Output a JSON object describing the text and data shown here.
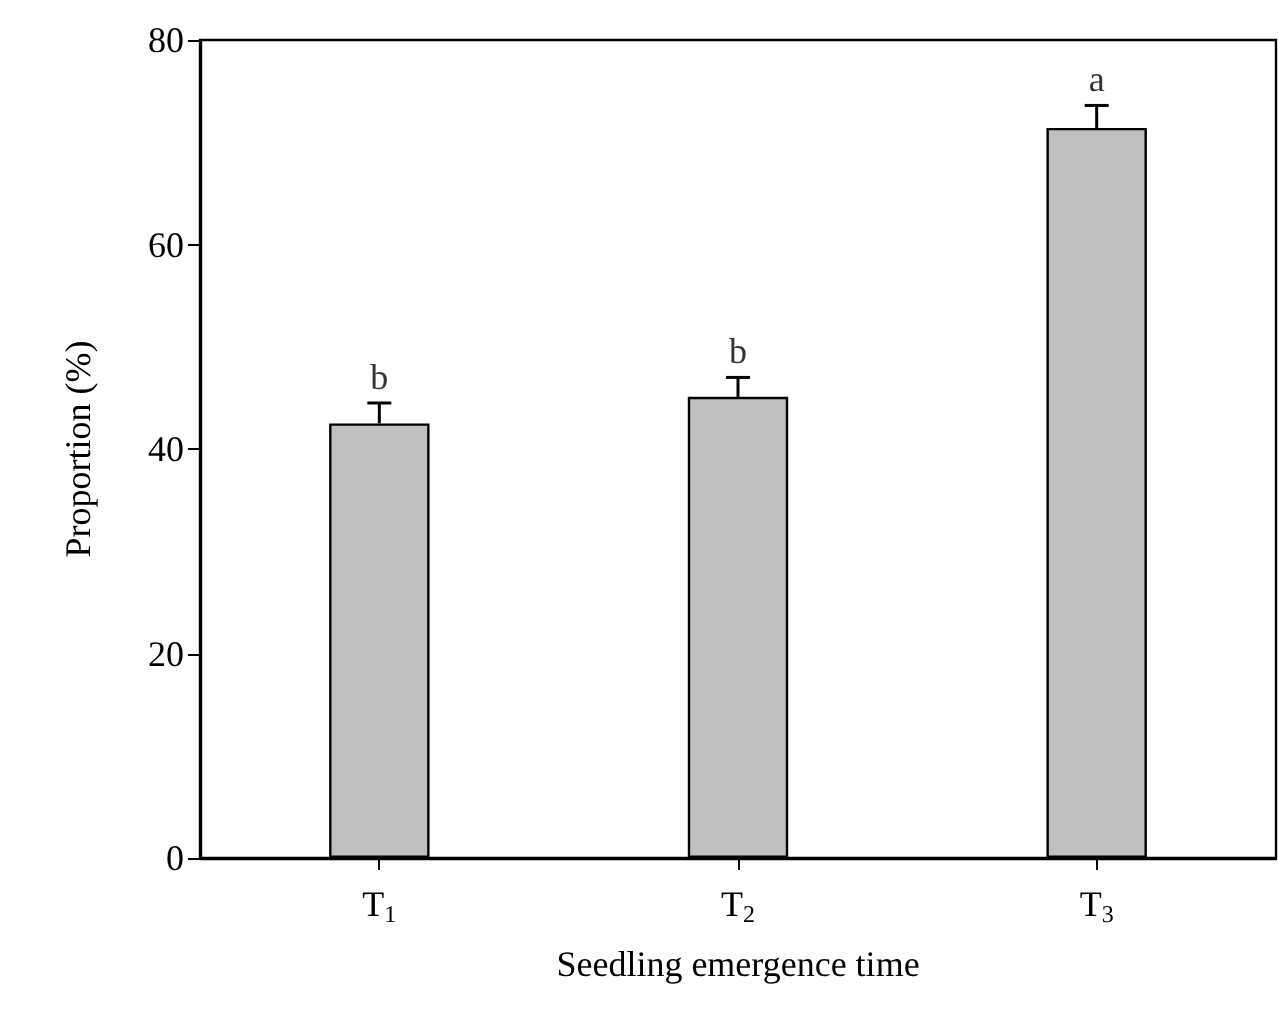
{
  "chart_data": {
    "type": "bar",
    "xlabel": "Seedling emergence time",
    "ylabel": "Proportion (%)",
    "categories": [
      "T$_{1}$",
      "T$_{2}$",
      "T$_{3}$"
    ],
    "values": [
      42.5,
      45.1,
      71.4
    ],
    "color": "#c0c0c0",
    "errors": [
      [
        42.5,
        44.5
      ],
      [
        45.1,
        47.0
      ],
      [
        71.4,
        73.6
      ]
    ],
    "annotations": [
      "b",
      "b",
      "a"
    ],
    "ylim": [
      0,
      80
    ],
    "yticks": [
      0,
      20,
      40,
      60,
      80
    ],
    "grid": false
  }
}
